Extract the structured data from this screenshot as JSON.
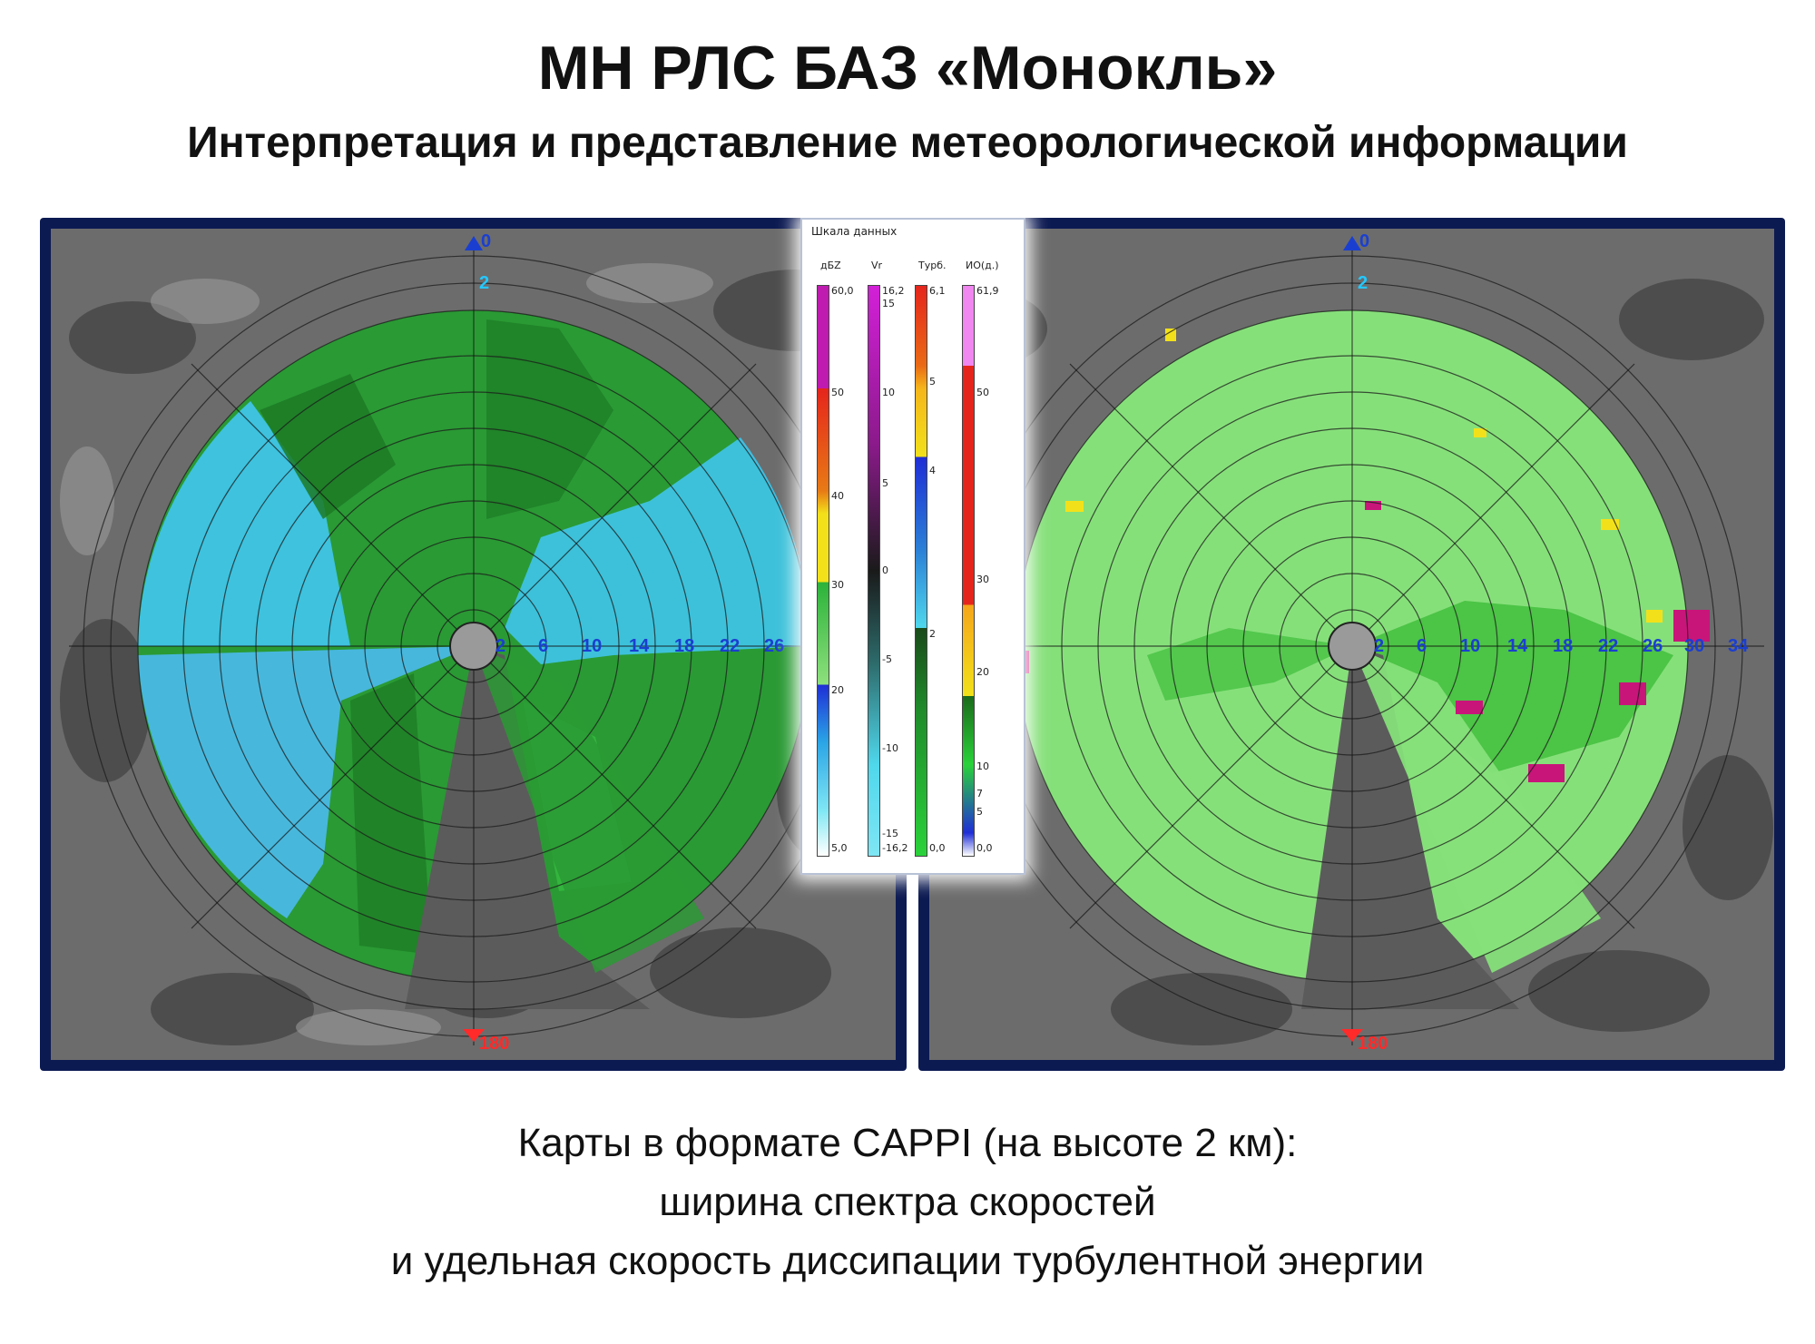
{
  "title": "МН РЛС БАЗ «Монокль»",
  "subtitle": "Интерпретация и представление метеорологической информации",
  "left_map": {
    "north_label": "0",
    "south_label": "180",
    "range_labels": [
      "2",
      "6",
      "10",
      "14",
      "18",
      "22",
      "26"
    ],
    "top_range_label": "2"
  },
  "right_map": {
    "north_label": "0",
    "south_label": "180",
    "range_labels": [
      "2",
      "6",
      "10",
      "14",
      "18",
      "22",
      "26",
      "30",
      "34"
    ],
    "top_range_label": "2"
  },
  "scale": {
    "title": "Шкала данных",
    "columns": [
      {
        "label": "дБZ",
        "ticks": [
          "60,0",
          "50",
          "40",
          "30",
          "20",
          "5,0"
        ]
      },
      {
        "label": "Vr",
        "ticks": [
          "16,2",
          "15",
          "10",
          "5",
          "0",
          "-5",
          "-10",
          "-15",
          "-16,2"
        ]
      },
      {
        "label": "Турб.",
        "ticks": [
          "6,1",
          "5",
          "4",
          "2",
          "0,0"
        ]
      },
      {
        "label": "ИО(д.)",
        "ticks": [
          "61,9",
          "50",
          "30",
          "20",
          "10",
          "7",
          "5",
          "0,0"
        ]
      }
    ]
  },
  "caption": {
    "line1": "Карты в формате CAPPI (на высоте 2 км):",
    "line2": "ширина спектра скоростей",
    "line3": "и удельная скорость диссипации турбулентной энергии"
  },
  "colors": {
    "panel_border": "#0c1a52",
    "map_background": "#6c6c6c",
    "radar_dark_green": "#1e8a28",
    "radar_green": "#2cb83a",
    "radar_cyan": "#3fc4e8",
    "radar_light_green": "#86e07a",
    "radar_magenta": "#c8157a",
    "azimuth_label": "#1a3fd0",
    "south_label": "#ff2a2a",
    "top_label": "#24c8ff"
  }
}
